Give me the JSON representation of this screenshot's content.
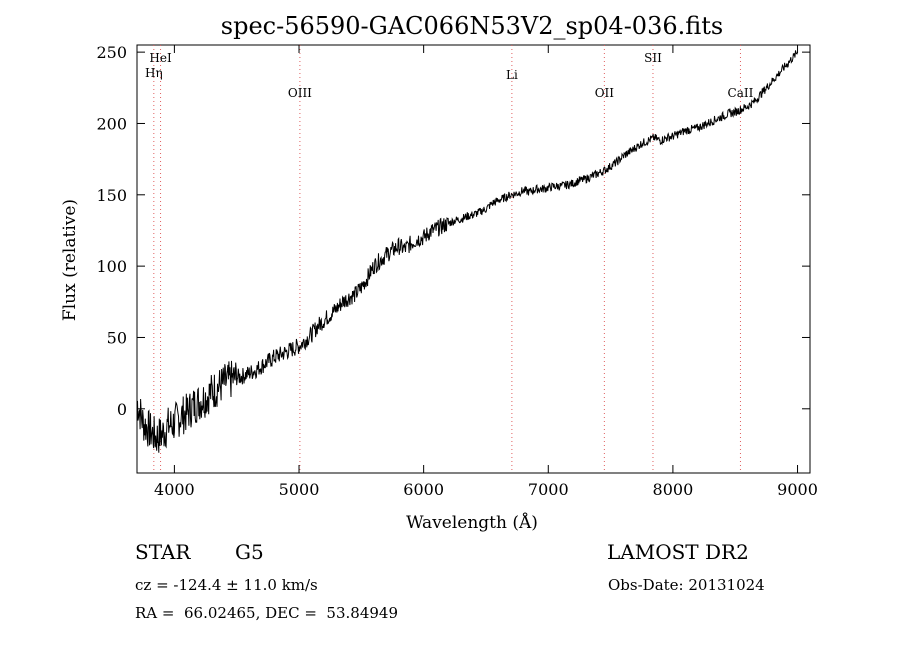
{
  "chart_data": {
    "type": "line",
    "title": "spec-56590-GAC066N53V2_sp04-036.fits",
    "xlabel": "Wavelength (Å)",
    "ylabel": "Flux (relative)",
    "xlim": [
      3700,
      9100
    ],
    "ylim": [
      -45,
      255
    ],
    "xticks": [
      4000,
      5000,
      6000,
      7000,
      8000,
      9000
    ],
    "yticks": [
      0,
      50,
      100,
      150,
      200,
      250
    ],
    "grid": false,
    "line_color": "#000000",
    "marker_color": "#e06060",
    "line_markers": [
      {
        "label": "Hη",
        "wavelength": 3835
      },
      {
        "label": "HeI",
        "wavelength": 3889
      },
      {
        "label": "OIII",
        "wavelength": 5007
      },
      {
        "label": "Li",
        "wavelength": 6708
      },
      {
        "label": "OII",
        "wavelength": 7450
      },
      {
        "label": "SII",
        "wavelength": 7840
      },
      {
        "label": "CaII",
        "wavelength": 8542
      }
    ],
    "series": [
      {
        "x": [
          3700,
          3750,
          3800,
          3850,
          3900,
          3950,
          4000,
          4050,
          4100,
          4150,
          4200,
          4250,
          4300,
          4350,
          4400,
          4450,
          4500,
          4550,
          4600,
          4650,
          4700,
          4750,
          4800,
          4850,
          4900,
          4950,
          5000,
          5050,
          5100,
          5150,
          5200,
          5250,
          5300,
          5350,
          5400,
          5450,
          5500,
          5550,
          5600,
          5650,
          5700,
          5750,
          5800,
          5850,
          5900,
          5950,
          6000,
          6050,
          6100,
          6150,
          6200,
          6250,
          6300,
          6350,
          6400,
          6450,
          6500,
          6550,
          6600,
          6650,
          6700,
          6750,
          6800,
          6850,
          6900,
          6950,
          7000,
          7050,
          7100,
          7150,
          7200,
          7250,
          7300,
          7350,
          7400,
          7450,
          7500,
          7550,
          7600,
          7650,
          7700,
          7750,
          7800,
          7850,
          7900,
          7950,
          8000,
          8050,
          8100,
          8150,
          8200,
          8250,
          8300,
          8350,
          8400,
          8450,
          8500,
          8550,
          8600,
          8650,
          8700,
          8750,
          8800,
          8850,
          8900,
          8950,
          9000
        ],
        "y": [
          5,
          -10,
          -15,
          -20,
          -18,
          -12,
          -10,
          -5,
          -3,
          2,
          5,
          8,
          12,
          15,
          18,
          20,
          22,
          23,
          25,
          27,
          30,
          33,
          36,
          38,
          40,
          42,
          44,
          48,
          52,
          58,
          62,
          66,
          70,
          75,
          78,
          80,
          85,
          92,
          100,
          104,
          108,
          111,
          114,
          112,
          116,
          119,
          120,
          124,
          126,
          128,
          130,
          132,
          133,
          135,
          136,
          138,
          140,
          144,
          146,
          148,
          150,
          151,
          153,
          152,
          154,
          154,
          155,
          156,
          156,
          157,
          158,
          160,
          161,
          163,
          165,
          167,
          170,
          173,
          177,
          180,
          183,
          186,
          188,
          190,
          188,
          190,
          191,
          193,
          195,
          196,
          197,
          199,
          201,
          203,
          205,
          207,
          208,
          210,
          212,
          215,
          220,
          225,
          230,
          235,
          240,
          245,
          250
        ]
      }
    ]
  },
  "info": {
    "class": "STAR",
    "subclass": "G5",
    "survey": "LAMOST DR2",
    "cz": "cz = -124.4 ± 11.0 km/s",
    "obs_date": "Obs-Date: 20131024",
    "radec": "RA =  66.02465, DEC =  53.84949"
  }
}
